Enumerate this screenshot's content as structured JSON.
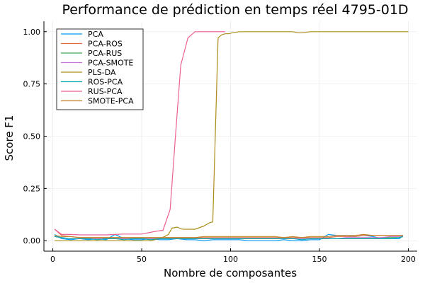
{
  "chart_data": {
    "type": "line",
    "title": "Performance de prédiction en temps réel 4795-01D",
    "xlabel": "Nombre de composantes",
    "ylabel": "Score F1",
    "xlim": [
      -5,
      205
    ],
    "ylim": [
      -0.05,
      1.05
    ],
    "xticks": [
      0,
      50,
      100,
      150,
      200
    ],
    "yticks": [
      0.0,
      0.25,
      0.5,
      0.75,
      1.0
    ],
    "xtick_labels": [
      "0",
      "50",
      "100",
      "150",
      "200"
    ],
    "ytick_labels": [
      "0.00",
      "0.25",
      "0.50",
      "0.75",
      "1.00"
    ],
    "grid": true,
    "legend_position": "top-left",
    "series": [
      {
        "name": "PCA",
        "color": "#009AFA",
        "x": [
          1,
          5,
          10,
          15,
          20,
          25,
          30,
          35,
          40,
          45,
          50,
          55,
          60,
          65,
          70,
          75,
          80,
          85,
          90,
          95,
          100,
          105,
          110,
          115,
          120,
          125,
          130,
          135,
          140,
          145,
          150,
          155,
          160,
          165,
          170,
          175,
          180,
          185,
          190,
          195,
          197
        ],
        "y": [
          0.03,
          0.01,
          0.005,
          0.01,
          0.005,
          0.01,
          0.005,
          0.03,
          0.01,
          0.005,
          0.005,
          0.01,
          0.005,
          0.005,
          0.01,
          0.005,
          0.005,
          0.0,
          0.005,
          0.005,
          0.005,
          0.005,
          0.0,
          0.0,
          0.0,
          0.0,
          0.005,
          0.0,
          0.0,
          0.005,
          0.005,
          0.03,
          0.025,
          0.025,
          0.02,
          0.025,
          0.02,
          0.01,
          0.01,
          0.01,
          0.025
        ]
      },
      {
        "name": "PCA-ROS",
        "color": "#E36F47",
        "x": [
          1,
          5,
          10,
          15,
          20,
          25,
          30,
          35,
          40,
          45,
          50,
          55,
          60,
          65,
          70,
          75,
          80,
          85,
          90,
          95,
          100,
          105,
          110,
          115,
          120,
          125,
          130,
          135,
          140,
          145,
          150,
          155,
          160,
          165,
          170,
          175,
          180,
          185,
          190,
          195,
          197
        ],
        "y": [
          0.055,
          0.025,
          0.02,
          0.015,
          0.015,
          0.015,
          0.015,
          0.015,
          0.015,
          0.015,
          0.015,
          0.015,
          0.015,
          0.015,
          0.015,
          0.015,
          0.015,
          0.015,
          0.015,
          0.015,
          0.015,
          0.015,
          0.015,
          0.015,
          0.015,
          0.015,
          0.015,
          0.015,
          0.015,
          0.015,
          0.015,
          0.015,
          0.02,
          0.02,
          0.02,
          0.025,
          0.025,
          0.025,
          0.025,
          0.025,
          0.025
        ]
      },
      {
        "name": "PCA-RUS",
        "color": "#3EA44E",
        "x": [
          1,
          5,
          10,
          15,
          20,
          25,
          30,
          35,
          40,
          45,
          50,
          55,
          60,
          65,
          70,
          75,
          80,
          85,
          90,
          95,
          100,
          105,
          110,
          115,
          120,
          125,
          130,
          135,
          140,
          145,
          150,
          155,
          160,
          165,
          170,
          175,
          180,
          185,
          190,
          195,
          197
        ],
        "y": [
          0.02,
          0.015,
          0.01,
          0.01,
          0.01,
          0.01,
          0.01,
          0.01,
          0.01,
          0.01,
          0.01,
          0.01,
          0.01,
          0.01,
          0.01,
          0.01,
          0.01,
          0.01,
          0.01,
          0.01,
          0.01,
          0.01,
          0.01,
          0.01,
          0.01,
          0.01,
          0.01,
          0.01,
          0.01,
          0.01,
          0.01,
          0.01,
          0.01,
          0.01,
          0.01,
          0.01,
          0.01,
          0.015,
          0.015,
          0.015,
          0.02
        ]
      },
      {
        "name": "PCA-SMOTE",
        "color": "#C271D2",
        "x": [
          1,
          5,
          10,
          15,
          20,
          25,
          30,
          35,
          40,
          45,
          50,
          55,
          60,
          65,
          70,
          75,
          80,
          85,
          90,
          95,
          100,
          105,
          110,
          115,
          120,
          125,
          130,
          135,
          140,
          145,
          150,
          155,
          160,
          165,
          170,
          175,
          180,
          185,
          190,
          195,
          197
        ],
        "y": [
          0.02,
          0.015,
          0.01,
          0.01,
          0.01,
          0.01,
          0.01,
          0.01,
          0.01,
          0.01,
          0.01,
          0.01,
          0.01,
          0.01,
          0.01,
          0.01,
          0.01,
          0.01,
          0.01,
          0.01,
          0.01,
          0.01,
          0.01,
          0.01,
          0.01,
          0.01,
          0.01,
          0.01,
          0.01,
          0.01,
          0.01,
          0.01,
          0.01,
          0.015,
          0.015,
          0.015,
          0.015,
          0.015,
          0.02,
          0.02,
          0.02
        ]
      },
      {
        "name": "PLS-DA",
        "color": "#AC8D18",
        "x": [
          1,
          5,
          10,
          15,
          20,
          25,
          30,
          35,
          40,
          45,
          50,
          55,
          60,
          63,
          65,
          67,
          70,
          73,
          75,
          80,
          85,
          88,
          90,
          93,
          95,
          97,
          99,
          101,
          105,
          110,
          115,
          120,
          125,
          130,
          135,
          138,
          140,
          145,
          150,
          160,
          170,
          180,
          190,
          200
        ],
        "y": [
          0.0,
          0.0,
          0.0,
          0.0,
          0.0,
          0.0,
          0.0,
          0.0,
          0.0,
          0.0,
          0.0,
          0.0,
          0.01,
          0.02,
          0.03,
          0.06,
          0.065,
          0.055,
          0.055,
          0.055,
          0.07,
          0.085,
          0.09,
          0.97,
          0.985,
          0.99,
          0.99,
          0.995,
          1.0,
          1.0,
          1.0,
          1.0,
          1.0,
          1.0,
          1.0,
          0.995,
          0.995,
          1.0,
          1.0,
          1.0,
          1.0,
          1.0,
          1.0,
          1.0
        ]
      },
      {
        "name": "ROS-PCA",
        "color": "#00A9AD",
        "x": [
          1,
          5,
          10,
          15,
          20,
          25,
          30,
          35,
          40,
          45,
          50,
          55,
          60,
          65,
          70,
          75,
          80,
          85,
          90,
          95,
          100,
          105,
          110,
          115,
          120,
          125,
          130,
          135,
          140,
          145,
          150,
          155,
          160,
          165,
          170,
          175,
          180,
          185,
          190,
          195,
          197
        ],
        "y": [
          0.02,
          0.015,
          0.01,
          0.01,
          0.01,
          0.005,
          0.01,
          0.01,
          0.005,
          0.01,
          0.01,
          0.005,
          0.01,
          0.01,
          0.01,
          0.01,
          0.01,
          0.01,
          0.01,
          0.01,
          0.01,
          0.01,
          0.01,
          0.01,
          0.01,
          0.01,
          0.01,
          0.01,
          0.005,
          0.01,
          0.01,
          0.01,
          0.01,
          0.01,
          0.01,
          0.01,
          0.01,
          0.01,
          0.01,
          0.015,
          0.02
        ]
      },
      {
        "name": "RUS-PCA",
        "color": "#ED5E93",
        "x": [
          1,
          5,
          10,
          15,
          20,
          25,
          30,
          35,
          40,
          45,
          50,
          55,
          58,
          62,
          66,
          69,
          72,
          76,
          80,
          85,
          90,
          95,
          97
        ],
        "y": [
          0.055,
          0.03,
          0.03,
          0.028,
          0.028,
          0.028,
          0.028,
          0.03,
          0.032,
          0.032,
          0.032,
          0.04,
          0.045,
          0.05,
          0.15,
          0.5,
          0.84,
          0.97,
          1.0,
          1.0,
          1.0,
          1.0,
          1.0
        ]
      },
      {
        "name": "SMOTE-PCA",
        "color": "#C68225",
        "x": [
          1,
          5,
          10,
          15,
          20,
          25,
          30,
          35,
          40,
          45,
          50,
          55,
          60,
          65,
          70,
          75,
          80,
          85,
          90,
          95,
          100,
          105,
          110,
          115,
          120,
          125,
          130,
          135,
          140,
          145,
          150,
          155,
          160,
          165,
          170,
          175,
          180,
          185,
          190,
          195,
          197
        ],
        "y": [
          0.025,
          0.02,
          0.02,
          0.015,
          0.015,
          0.015,
          0.015,
          0.015,
          0.015,
          0.015,
          0.015,
          0.015,
          0.015,
          0.015,
          0.015,
          0.015,
          0.015,
          0.02,
          0.02,
          0.02,
          0.02,
          0.02,
          0.02,
          0.02,
          0.02,
          0.02,
          0.015,
          0.02,
          0.015,
          0.02,
          0.02,
          0.02,
          0.025,
          0.025,
          0.025,
          0.03,
          0.025,
          0.025,
          0.025,
          0.025,
          0.025
        ]
      }
    ]
  }
}
